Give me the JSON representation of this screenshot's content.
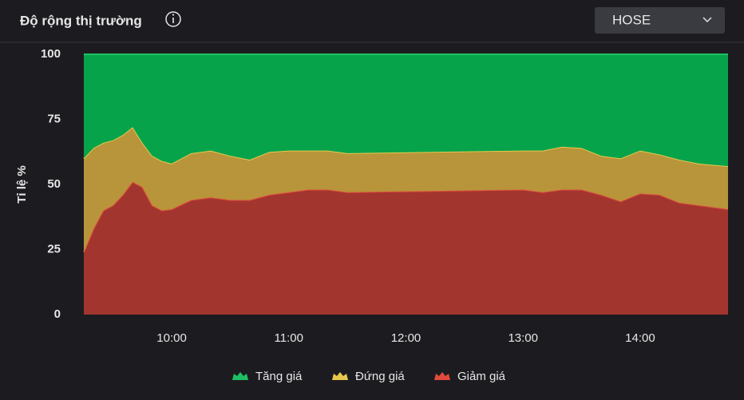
{
  "controls": {
    "exchange": "HOSE"
  },
  "chart_data": {
    "type": "stacked-area",
    "title": "Độ rộng thị trường",
    "y_label": "Tỉ lệ %",
    "x": [
      "09:15",
      "09:20",
      "09:25",
      "09:30",
      "09:35",
      "09:40",
      "09:45",
      "09:50",
      "09:55",
      "10:00",
      "10:10",
      "10:20",
      "10:30",
      "10:40",
      "10:50",
      "11:00",
      "11:10",
      "11:20",
      "11:30",
      "13:00",
      "13:10",
      "13:20",
      "13:30",
      "13:40",
      "13:50",
      "14:00",
      "14:10",
      "14:20",
      "14:30",
      "14:45"
    ],
    "xlim": [
      "09:15",
      "14:45"
    ],
    "xticks": [
      "10:00",
      "11:00",
      "12:00",
      "13:00",
      "14:00"
    ],
    "ylim": [
      0,
      100
    ],
    "yticks": [
      0,
      25,
      50,
      75,
      100
    ],
    "grid": false,
    "series": [
      {
        "name": "Tăng giá",
        "color": "#07a34b",
        "line": "#1fc063",
        "values": [
          40,
          36,
          34,
          33,
          31,
          28,
          34,
          39,
          41,
          42,
          38,
          37,
          39,
          40.5,
          37.5,
          37,
          37,
          37,
          38,
          37,
          37,
          35.5,
          36,
          39,
          40,
          37,
          38.5,
          40.5,
          42,
          43
        ]
      },
      {
        "name": "Đứng giá",
        "color": "#b8943a",
        "line": "#e8c84c",
        "values": [
          36,
          31,
          26,
          25,
          23,
          21,
          17,
          19,
          19,
          17.5,
          18,
          18,
          17,
          15.5,
          16.5,
          16,
          15,
          15,
          15,
          15,
          16,
          16.5,
          16,
          15,
          16.5,
          16.5,
          15.5,
          16.5,
          16,
          16.5
        ]
      },
      {
        "name": "Giảm giá",
        "color": "#a3352f",
        "line": "#e04a3c",
        "values": [
          24,
          33,
          40,
          42,
          46,
          51,
          49,
          42,
          40,
          40.5,
          44,
          45,
          44,
          44,
          46,
          47,
          48,
          48,
          47,
          48,
          47,
          48,
          48,
          46,
          43.5,
          46.5,
          46,
          43,
          42,
          40.5
        ]
      }
    ]
  }
}
